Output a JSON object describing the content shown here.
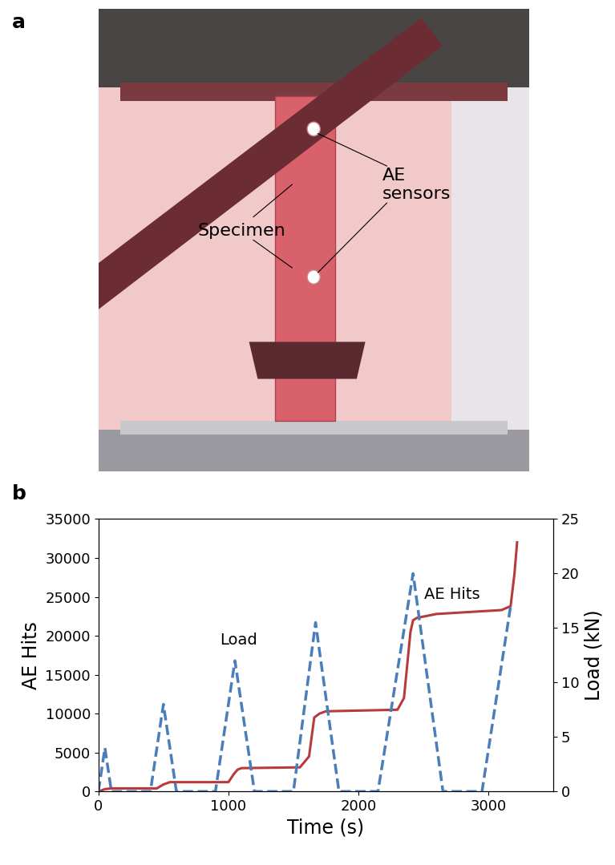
{
  "figure": {
    "panel_labels": [
      "a",
      "b"
    ]
  },
  "photo": {
    "annotations": [
      "AE\nsensors",
      "Specimen"
    ]
  },
  "chart_data": {
    "type": "line",
    "x_label": "Time (s)",
    "y_label": "AE Hits",
    "y2_label": "Load (kN)",
    "annotations": [
      "Load",
      "AE Hits"
    ],
    "xlim": [
      0,
      3500
    ],
    "xticks": [
      0,
      1000,
      2000,
      3000
    ],
    "ylim": [
      0,
      35000
    ],
    "yticks": [
      0,
      5000,
      10000,
      15000,
      20000,
      25000,
      30000,
      35000
    ],
    "y2lim": [
      0,
      25
    ],
    "y2ticks": [
      0,
      5,
      10,
      15,
      20,
      25
    ],
    "series": [
      {
        "name": "AE Hits",
        "color": "#b83a3a",
        "line_style": "solid",
        "x": [
          0,
          50,
          100,
          450,
          500,
          550,
          1000,
          1040,
          1070,
          1100,
          1550,
          1620,
          1660,
          1700,
          1750,
          2300,
          2350,
          2400,
          2420,
          2450,
          2600,
          3100,
          3170,
          3200,
          3220
        ],
        "values": [
          0,
          300,
          400,
          400,
          900,
          1200,
          1200,
          2200,
          2800,
          3000,
          3100,
          4500,
          9500,
          10000,
          10300,
          10500,
          12000,
          20500,
          22000,
          22300,
          22800,
          23300,
          23800,
          28000,
          32000
        ]
      },
      {
        "name": "Load",
        "color": "#4a7ebb",
        "line_style": "dashed",
        "axis": "y2",
        "x": [
          0,
          50,
          100,
          400,
          500,
          600,
          900,
          1050,
          1200,
          1500,
          1670,
          1850,
          2150,
          2420,
          2650,
          2950,
          3170
        ],
        "values": [
          0,
          4,
          0,
          0,
          8,
          0,
          0,
          12,
          0,
          0,
          15.5,
          0,
          0,
          20,
          0,
          0,
          17
        ]
      }
    ]
  }
}
